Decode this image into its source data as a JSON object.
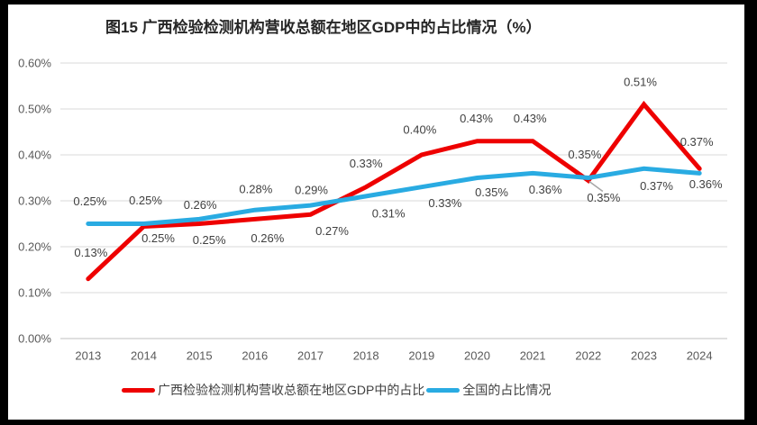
{
  "frame": {
    "border_color": "#000000",
    "background": "#ffffff"
  },
  "chart_data": {
    "type": "line",
    "title": "图15 广西检验检测机构营收总额在地区GDP中的占比情况（%）",
    "categories": [
      "2013",
      "2014",
      "2015",
      "2016",
      "2017",
      "2018",
      "2019",
      "2020",
      "2021",
      "2022",
      "2023",
      "2024"
    ],
    "y_axis": {
      "min": 0,
      "max": 0.6,
      "step": 0.1,
      "tick_labels": [
        "0.00%",
        "0.10%",
        "0.20%",
        "0.30%",
        "0.40%",
        "0.50%",
        "0.60%"
      ]
    },
    "grid": true,
    "legend_position": "bottom",
    "series": [
      {
        "name": "广西检验检测机构营收总额在地区GDP中的占比",
        "color": "#ee0000",
        "values": [
          0.13,
          0.25,
          0.25,
          0.26,
          0.27,
          0.33,
          0.4,
          0.43,
          0.43,
          0.35,
          0.51,
          0.37
        ],
        "labels": [
          "0.13%",
          "0.25%",
          "0.25%",
          "0.26%",
          "0.27%",
          "0.33%",
          "0.40%",
          "0.43%",
          "0.43%",
          "0.35%",
          "0.51%",
          "0.37%"
        ],
        "label_offsets": [
          [
            3,
            -29
          ],
          [
            16,
            13
          ],
          [
            11,
            18
          ],
          [
            14,
            21
          ],
          [
            24,
            18
          ],
          [
            0,
            -26
          ],
          [
            -2,
            -28
          ],
          [
            -1,
            -25
          ],
          [
            -3,
            -25
          ],
          [
            17,
            19
          ],
          [
            -4,
            -25
          ],
          [
            -3,
            -30
          ]
        ],
        "leader_line_index": 9
      },
      {
        "name": "全国的占比情况",
        "color": "#29abe2",
        "values": [
          0.25,
          0.25,
          0.26,
          0.28,
          0.29,
          0.31,
          0.33,
          0.35,
          0.36,
          0.35,
          0.37,
          0.36
        ],
        "labels": [
          "0.25%",
          "0.25%",
          "0.26%",
          "0.28%",
          "0.29%",
          "0.31%",
          "0.33%",
          "0.35%",
          "0.36%",
          "0.35%",
          "0.37%",
          "0.36%"
        ],
        "label_offsets": [
          [
            2,
            -25
          ],
          [
            2,
            -26
          ],
          [
            1,
            -16
          ],
          [
            1,
            -23
          ],
          [
            1,
            -17
          ],
          [
            25,
            19
          ],
          [
            26,
            18
          ],
          [
            16,
            16
          ],
          [
            14,
            18
          ],
          [
            -4,
            -26
          ],
          [
            14,
            19
          ],
          [
            7,
            12
          ]
        ]
      }
    ],
    "colors": {
      "gridline": "#d9d9d9",
      "axis_line": "#bfbfbf",
      "tick_text": "#595959",
      "data_label_text": "#404040",
      "title_text": "#262626",
      "legend_text": "#404040",
      "leader_line": "#a6a6a6"
    }
  }
}
